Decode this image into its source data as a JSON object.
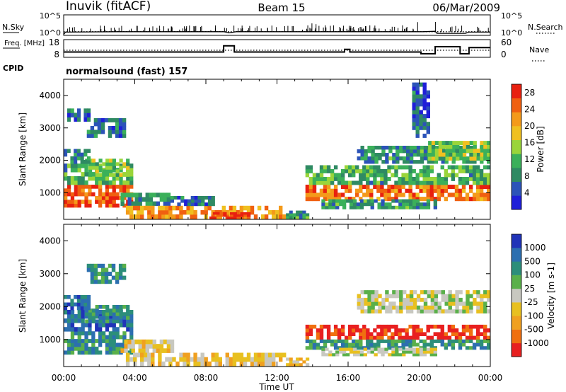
{
  "header": {
    "station": "Inuvik (fitACF)",
    "beam": "Beam 15",
    "date": "06/Mar/2009"
  },
  "colors": {
    "power_scale": [
      "#1f1fd8",
      "#2c53b8",
      "#2f8a63",
      "#3bb05a",
      "#9ad53a",
      "#f0c020",
      "#f49a1a",
      "#f06010",
      "#e82010"
    ],
    "velocity_scale": [
      "#2033b8",
      "#2c6fb0",
      "#2c8e7a",
      "#5ab04a",
      "#c8c8c0",
      "#e8c020",
      "#f0a020",
      "#f07010",
      "#e82020"
    ],
    "line": "#000000"
  },
  "chart_data": [
    {
      "type": "line",
      "panel": "noise-search",
      "xlim_hours": [
        0,
        24
      ],
      "left_axis": {
        "label": "N.Sky",
        "ticks": [
          "10^5",
          "10^0"
        ]
      },
      "right_axis": {
        "label": "N.Search",
        "ticks": [
          "10^5",
          "10^0"
        ]
      },
      "series": [
        {
          "name": "N.Sky",
          "style": "solid",
          "x": [
            0,
            0.1,
            3,
            6,
            9,
            9.3,
            9.7,
            12,
            15,
            15.8,
            16,
            18,
            20.2,
            20.9,
            21,
            22.6,
            22.8,
            24
          ],
          "y_log10": [
            0.2,
            0.8,
            0.9,
            0.9,
            0.9,
            0.6,
            0.9,
            0.9,
            0.9,
            0.9,
            0.9,
            0.9,
            0.9,
            1.0,
            0.5,
            0.5,
            0.8,
            0.8
          ]
        },
        {
          "name": "N.Search",
          "style": "dotted",
          "x": [
            0,
            24
          ],
          "y_log10": [
            0.9,
            0.9
          ]
        }
      ]
    },
    {
      "type": "line",
      "panel": "frequency-nave",
      "xlim_hours": [
        0,
        24
      ],
      "left_axis": {
        "label": "Freq. [MHz]",
        "ticks": [
          "18",
          "8"
        ]
      },
      "right_axis": {
        "label": "Nave",
        "ticks": [
          "60",
          "0"
        ]
      },
      "cpid_label": "CPID",
      "cpid_text": "normalsound (fast) 157",
      "series": [
        {
          "name": "Freq.",
          "style": "solid",
          "x": [
            0,
            9,
            9,
            9.6,
            9.6,
            15.8,
            15.8,
            16.1,
            16.1,
            20.1,
            20.1,
            20.9,
            20.9,
            22.3,
            22.3,
            22.8,
            22.8,
            24
          ],
          "y": [
            11,
            11,
            14.5,
            14.5,
            11,
            11,
            12.5,
            12.5,
            11,
            11,
            10,
            10,
            14,
            14,
            10,
            10,
            13.5,
            13.5
          ]
        },
        {
          "name": "Nave",
          "style": "dotted",
          "x": [
            0,
            24
          ],
          "y": [
            24,
            24
          ]
        }
      ]
    },
    {
      "type": "heatmap",
      "panel": "power",
      "x_unit": "hours UT",
      "xlim_hours": [
        0,
        24
      ],
      "ylabel": "Slant Range [km]",
      "ylim_km": [
        180,
        4500
      ],
      "yticks": [
        "1000",
        "2000",
        "3000",
        "4000"
      ],
      "colorbar": {
        "label": "Power [dB]",
        "ticks": [
          "4",
          "8",
          "12",
          "16",
          "20",
          "24",
          "28"
        ],
        "range": [
          0,
          30
        ]
      },
      "regions": [
        {
          "t0": 0,
          "t1": 3.9,
          "r0": 550,
          "r1": 1250,
          "level": 26
        },
        {
          "t0": 0,
          "t1": 3.9,
          "r0": 1250,
          "r1": 1900,
          "level": 11
        },
        {
          "t0": 1.2,
          "t1": 3.7,
          "r0": 1500,
          "r1": 2050,
          "level": 14
        },
        {
          "t0": 0,
          "t1": 1.5,
          "r0": 1900,
          "r1": 2350,
          "level": 8
        },
        {
          "t0": 1.3,
          "t1": 3.5,
          "r0": 2700,
          "r1": 3300,
          "level": 7
        },
        {
          "t0": 0.2,
          "t1": 1.5,
          "r0": 3200,
          "r1": 3600,
          "level": 6
        },
        {
          "t0": 3.2,
          "t1": 6.2,
          "r0": 600,
          "r1": 1000,
          "level": 9
        },
        {
          "t0": 3.5,
          "t1": 12.5,
          "r0": 200,
          "r1": 600,
          "level": 22
        },
        {
          "t0": 8.2,
          "t1": 10.5,
          "r0": 200,
          "r1": 400,
          "level": 28
        },
        {
          "t0": 6,
          "t1": 8.5,
          "r0": 600,
          "r1": 900,
          "level": 7
        },
        {
          "t0": 12.5,
          "t1": 13.8,
          "r0": 200,
          "r1": 450,
          "level": 10
        },
        {
          "t0": 13.6,
          "t1": 24,
          "r0": 750,
          "r1": 1250,
          "level": 24
        },
        {
          "t0": 13.6,
          "t1": 24,
          "r0": 1250,
          "r1": 1850,
          "level": 11
        },
        {
          "t0": 16.5,
          "t1": 24,
          "r0": 1900,
          "r1": 2450,
          "level": 9
        },
        {
          "t0": 20.5,
          "t1": 24,
          "r0": 2000,
          "r1": 2600,
          "level": 14
        },
        {
          "t0": 14.5,
          "t1": 21,
          "r0": 500,
          "r1": 800,
          "level": 10
        },
        {
          "t0": 19.6,
          "t1": 20.6,
          "r0": 2700,
          "r1": 4400,
          "level": 6
        }
      ]
    },
    {
      "type": "heatmap",
      "panel": "velocity",
      "x_unit": "hours UT",
      "xlim_hours": [
        0,
        24
      ],
      "xlabel": "Time UT",
      "xticks": [
        "00:00",
        "04:00",
        "08:00",
        "12:00",
        "16:00",
        "20:00",
        "00:00"
      ],
      "ylabel": "Slant Range [km]",
      "ylim_km": [
        180,
        4500
      ],
      "yticks": [
        "1000",
        "2000",
        "3000",
        "4000"
      ],
      "colorbar": {
        "label": "Velocity [m s-1]",
        "ticks": [
          "1000",
          "500",
          "100",
          "25",
          "-25",
          "-100",
          "-500",
          "-1000"
        ]
      },
      "regions": [
        {
          "t0": 0,
          "t1": 3.9,
          "r0": 550,
          "r1": 1250,
          "level": 2
        },
        {
          "t0": 0,
          "t1": 3.9,
          "r0": 1250,
          "r1": 1900,
          "level": 1
        },
        {
          "t0": 1.2,
          "t1": 3.7,
          "r0": 1500,
          "r1": 2050,
          "level": 2
        },
        {
          "t0": 0,
          "t1": 1.5,
          "r0": 1900,
          "r1": 2350,
          "level": 1
        },
        {
          "t0": 1.3,
          "t1": 3.5,
          "r0": 2700,
          "r1": 3300,
          "level": 2
        },
        {
          "t0": 3.2,
          "t1": 6.2,
          "r0": 600,
          "r1": 1000,
          "level": 5
        },
        {
          "t0": 3.5,
          "t1": 12.5,
          "r0": 200,
          "r1": 600,
          "level": 5
        },
        {
          "t0": 12.5,
          "t1": 13.8,
          "r0": 200,
          "r1": 450,
          "level": 5
        },
        {
          "t0": 13.6,
          "t1": 24,
          "r0": 1000,
          "r1": 1450,
          "level": 8
        },
        {
          "t0": 13.6,
          "t1": 24,
          "r0": 700,
          "r1": 1000,
          "level": 2
        },
        {
          "t0": 16.5,
          "t1": 24,
          "r0": 1800,
          "r1": 2500,
          "level": 4
        },
        {
          "t0": 14.5,
          "t1": 21,
          "r0": 500,
          "r1": 750,
          "level": 4
        }
      ]
    }
  ]
}
